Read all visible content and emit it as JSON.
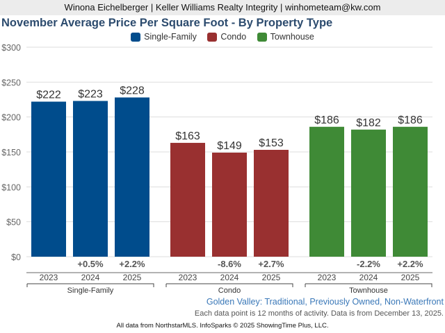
{
  "header": {
    "agent_line": "Winona Eichelberger | Keller Williams Realty Integrity | winhometeam@kw.com"
  },
  "chart_data": {
    "type": "bar",
    "title": "November Average Price Per Square Foot - By Property Type",
    "xlabel": "",
    "ylabel": "",
    "ylim": [
      0,
      300
    ],
    "yticks": [
      0,
      50,
      100,
      150,
      200,
      250,
      300
    ],
    "ytick_labels": [
      "$0",
      "$50",
      "$100",
      "$150",
      "$200",
      "$250",
      "$300"
    ],
    "grid": true,
    "legend_position": "top-center",
    "legend": [
      {
        "name": "Single-Family",
        "color": "#004c8c"
      },
      {
        "name": "Condo",
        "color": "#993030"
      },
      {
        "name": "Townhouse",
        "color": "#3f8a36"
      }
    ],
    "categories": [
      "2023",
      "2024",
      "2025"
    ],
    "groups": [
      {
        "name": "Single-Family",
        "color": "#004c8c",
        "values": [
          222,
          223,
          228
        ],
        "value_labels": [
          "$222",
          "$223",
          "$228"
        ],
        "changes": [
          "",
          "+0.5%",
          "+2.2%"
        ]
      },
      {
        "name": "Condo",
        "color": "#993030",
        "values": [
          163,
          149,
          153
        ],
        "value_labels": [
          "$163",
          "$149",
          "$153"
        ],
        "changes": [
          "",
          "-8.6%",
          "+2.7%"
        ]
      },
      {
        "name": "Townhouse",
        "color": "#3f8a36",
        "values": [
          186,
          182,
          186
        ],
        "value_labels": [
          "$186",
          "$182",
          "$186"
        ],
        "changes": [
          "",
          "-2.2%",
          "+2.2%"
        ]
      }
    ]
  },
  "subtitle": "Golden Valley: Traditional, Previously Owned, Non-Waterfront",
  "note": "Each data point is 12 months of activity. Data is from December 13, 2025.",
  "footer": "All data from NorthstarMLS. InfoSparks © 2025 ShowingTime Plus, LLC."
}
